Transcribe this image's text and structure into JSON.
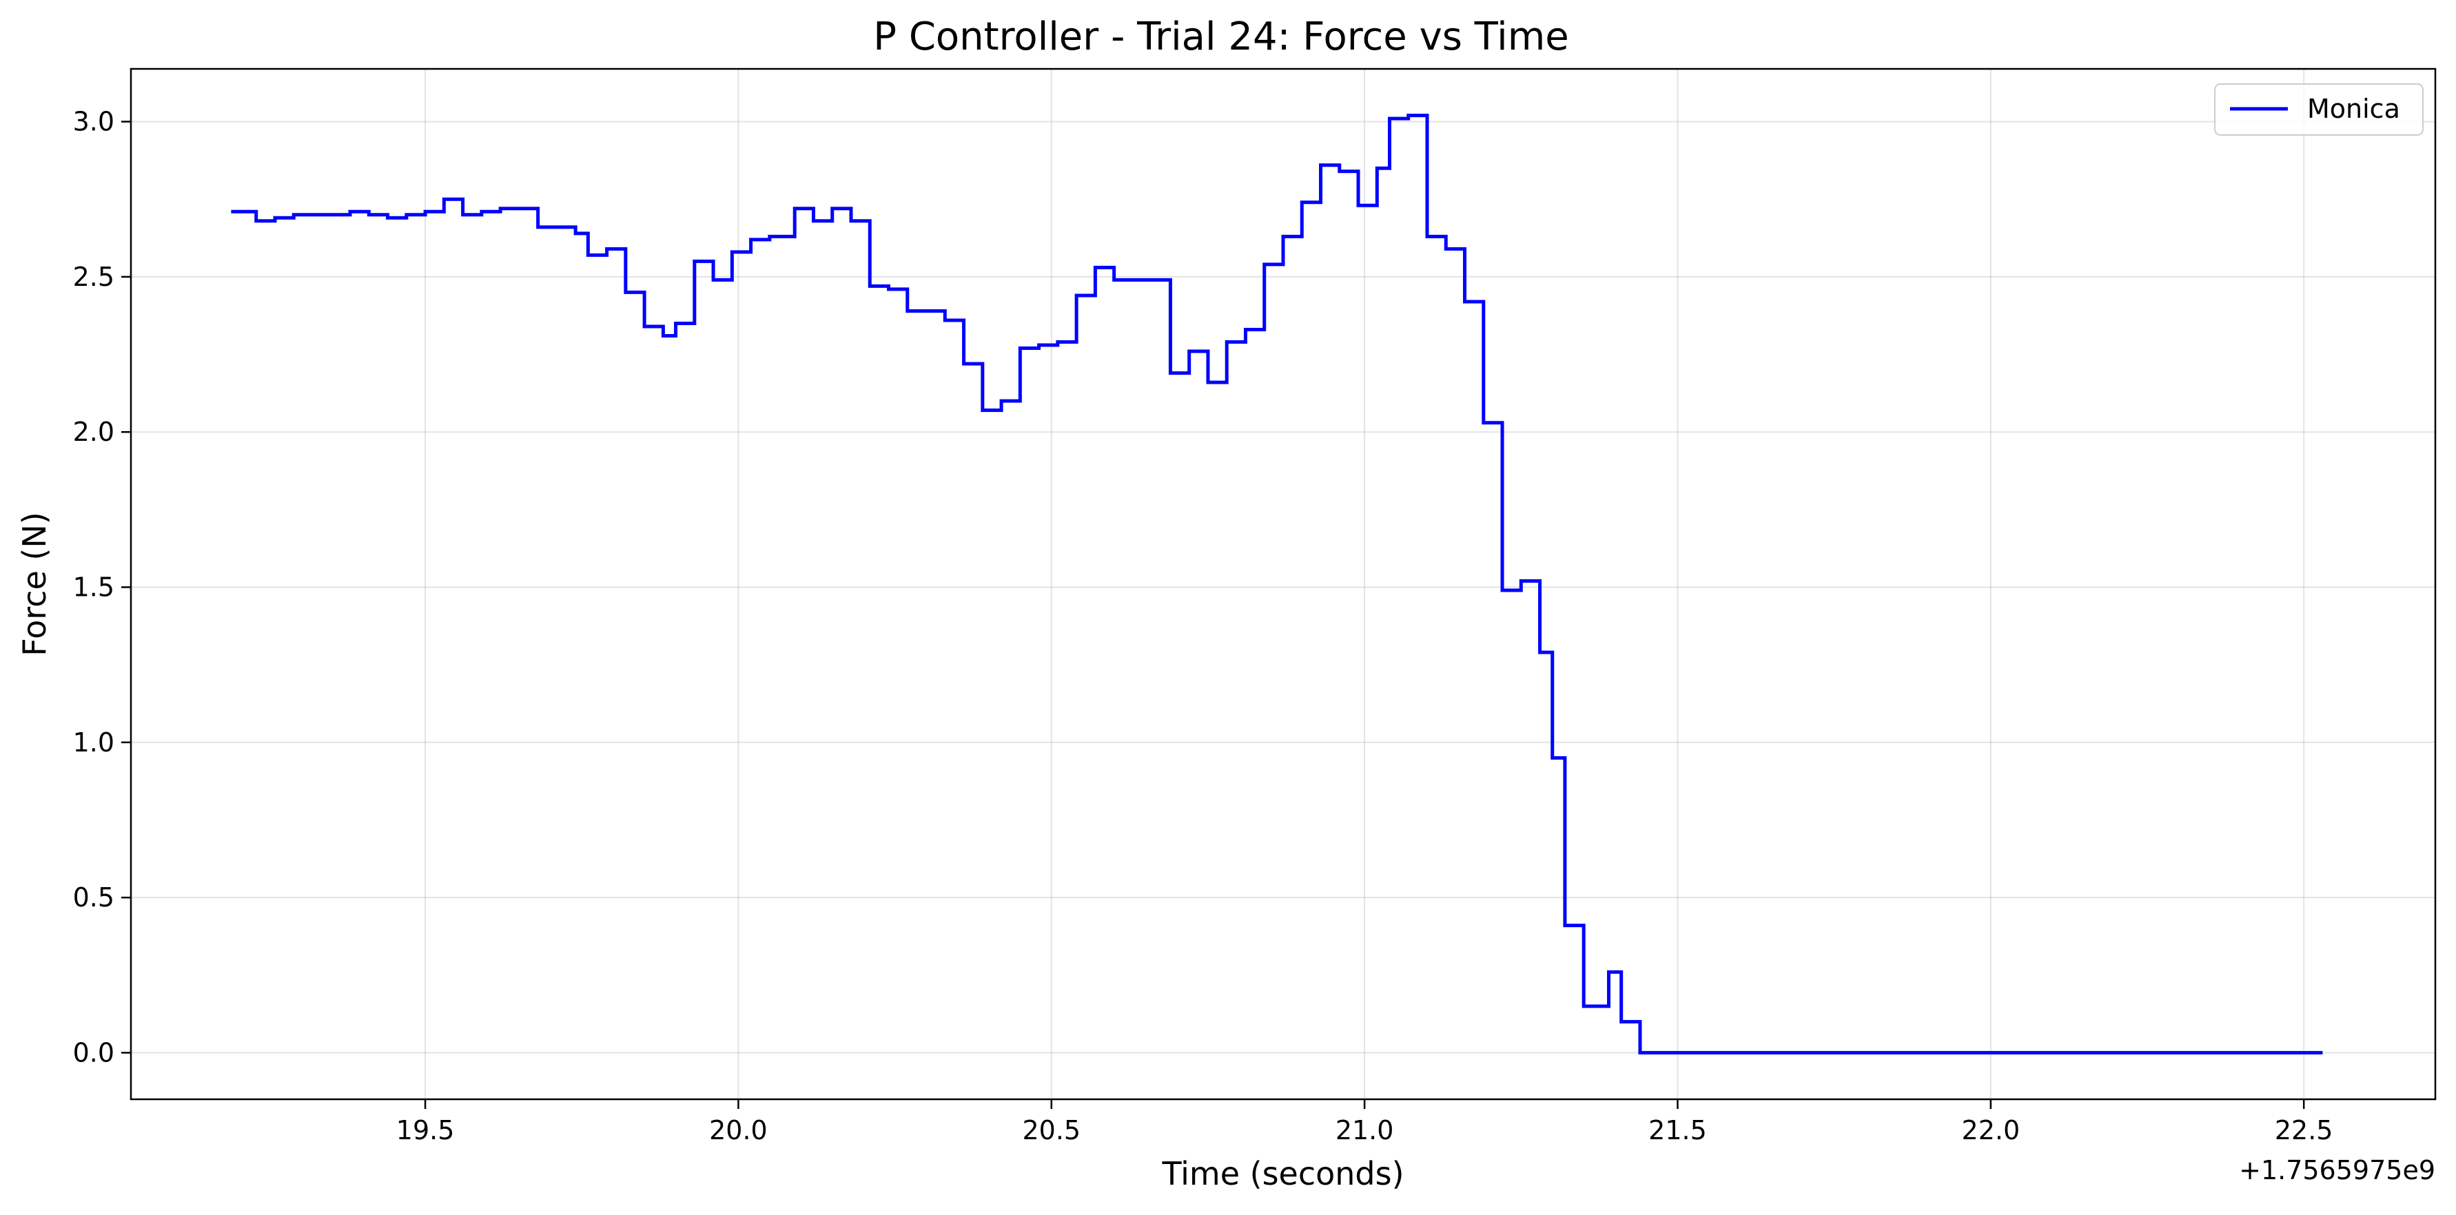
{
  "chart_data": {
    "type": "line",
    "title": "P Controller - Trial 24: Force vs Time",
    "xlabel": "Time (seconds)",
    "ylabel": "Force (N)",
    "x_offset_label": "+1.7565975e9",
    "xlim": [
      19.03,
      22.71
    ],
    "ylim": [
      -0.15,
      3.17
    ],
    "xticks": [
      19.5,
      20.0,
      20.5,
      21.0,
      21.5,
      22.0,
      22.5
    ],
    "xtick_labels": [
      "19.5",
      "20.0",
      "20.5",
      "21.0",
      "21.5",
      "22.0",
      "22.5"
    ],
    "yticks": [
      0.0,
      0.5,
      1.0,
      1.5,
      2.0,
      2.5,
      3.0
    ],
    "ytick_labels": [
      "0.0",
      "0.5",
      "1.0",
      "1.5",
      "2.0",
      "2.5",
      "3.0"
    ],
    "grid": true,
    "legend_position": "top-right",
    "step_style": "post",
    "series": [
      {
        "name": "Monica",
        "color": "#0000ff",
        "x": [
          19.19,
          19.23,
          19.26,
          19.29,
          19.32,
          19.35,
          19.38,
          19.41,
          19.44,
          19.47,
          19.5,
          19.53,
          19.56,
          19.59,
          19.62,
          19.65,
          19.68,
          19.71,
          19.74,
          19.76,
          19.79,
          19.82,
          19.85,
          19.88,
          19.9,
          19.93,
          19.96,
          19.99,
          20.02,
          20.05,
          20.09,
          20.12,
          20.15,
          20.18,
          20.21,
          20.24,
          20.27,
          20.3,
          20.33,
          20.36,
          20.39,
          20.42,
          20.45,
          20.48,
          20.51,
          20.54,
          20.57,
          20.6,
          20.63,
          20.66,
          20.69,
          20.72,
          20.75,
          20.78,
          20.81,
          20.84,
          20.87,
          20.9,
          20.93,
          20.96,
          20.99,
          21.02,
          21.04,
          21.07,
          21.1,
          21.13,
          21.16,
          21.19,
          21.22,
          21.25,
          21.28,
          21.3,
          21.32,
          21.35,
          21.39,
          21.41,
          21.44,
          21.47,
          21.5,
          22.53
        ],
        "y": [
          2.71,
          2.68,
          2.69,
          2.7,
          2.7,
          2.7,
          2.71,
          2.7,
          2.69,
          2.7,
          2.71,
          2.75,
          2.7,
          2.71,
          2.72,
          2.72,
          2.66,
          2.66,
          2.64,
          2.57,
          2.59,
          2.45,
          2.34,
          2.31,
          2.35,
          2.55,
          2.49,
          2.58,
          2.62,
          2.63,
          2.72,
          2.68,
          2.72,
          2.68,
          2.47,
          2.46,
          2.39,
          2.39,
          2.36,
          2.22,
          2.07,
          2.1,
          2.27,
          2.28,
          2.29,
          2.44,
          2.53,
          2.49,
          2.49,
          2.49,
          2.19,
          2.26,
          2.16,
          2.29,
          2.33,
          2.54,
          2.63,
          2.74,
          2.86,
          2.84,
          2.73,
          2.85,
          3.01,
          3.02,
          2.63,
          2.59,
          2.42,
          2.03,
          1.49,
          1.52,
          1.29,
          0.95,
          0.41,
          0.15,
          0.26,
          0.1,
          0.0,
          0.0,
          0.0,
          0.0
        ]
      }
    ]
  }
}
